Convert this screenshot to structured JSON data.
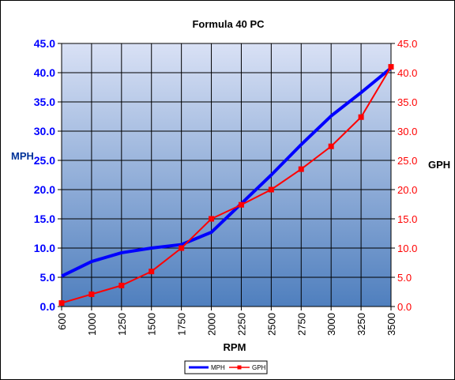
{
  "chart_data": {
    "type": "line",
    "title": "Formula 40 PC",
    "xlabel": "RPM",
    "ylabel_left": "MPH",
    "ylabel_right": "GPH",
    "categories": [
      "600",
      "1000",
      "1250",
      "1500",
      "1750",
      "2000",
      "2250",
      "2500",
      "2750",
      "3000",
      "3250",
      "3500"
    ],
    "ylim_left": [
      0,
      45
    ],
    "ylim_right": [
      0,
      45
    ],
    "yticks": [
      "0.0",
      "5.0",
      "10.0",
      "15.0",
      "20.0",
      "25.0",
      "30.0",
      "35.0",
      "40.0",
      "45.0"
    ],
    "grid": true,
    "legend_position": "bottom",
    "series": [
      {
        "name": "MPH",
        "axis": "left",
        "color": "#0000ff",
        "marker": "none",
        "values": [
          5.2,
          7.7,
          9.2,
          10.0,
          10.6,
          12.7,
          17.6,
          22.5,
          27.7,
          32.6,
          36.6,
          40.8
        ]
      },
      {
        "name": "GPH",
        "axis": "right",
        "color": "#ff0000",
        "marker": "square",
        "values": [
          0.6,
          2.1,
          3.6,
          6.0,
          10.0,
          15.0,
          17.4,
          20.0,
          23.5,
          27.4,
          32.4,
          41.0
        ]
      }
    ],
    "colors": {
      "left_axis_text": "#0000ff",
      "right_axis_text": "#ff0000",
      "plot_top": "#d9e1f5",
      "plot_bottom": "#4f7fbe"
    }
  }
}
